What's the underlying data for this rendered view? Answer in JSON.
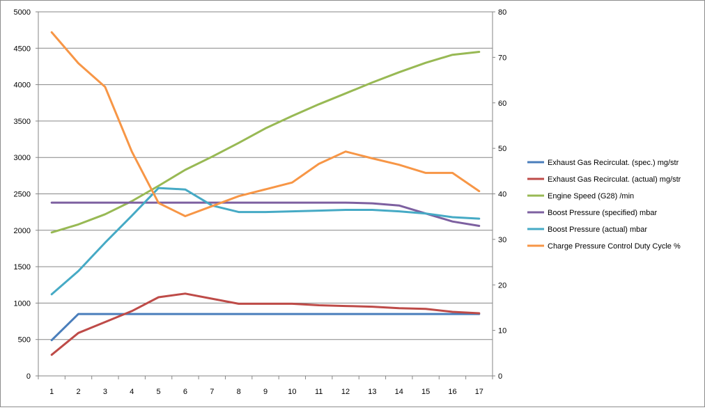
{
  "chart_data": {
    "type": "line",
    "title": "",
    "xlabel": "",
    "ylabel": "",
    "y2label": "",
    "categories": [
      "1",
      "2",
      "3",
      "4",
      "5",
      "6",
      "7",
      "8",
      "9",
      "10",
      "11",
      "12",
      "13",
      "14",
      "15",
      "16",
      "17"
    ],
    "ylim": [
      0,
      5000
    ],
    "y_ticks": [
      "0",
      "500",
      "1000",
      "1500",
      "2000",
      "2500",
      "3000",
      "3500",
      "4000",
      "4500",
      "5000"
    ],
    "y2lim": [
      0,
      80
    ],
    "y2_ticks": [
      "0",
      "10",
      "20",
      "30",
      "40",
      "50",
      "60",
      "70",
      "80"
    ],
    "grid": "horizontal",
    "legend_position": "right",
    "series": [
      {
        "name": "Exhaust Gas Recirculat. (spec.)  mg/str",
        "color": "#4a7ebb",
        "axis": "left",
        "values": [
          490,
          850,
          850,
          850,
          850,
          850,
          850,
          850,
          850,
          850,
          850,
          850,
          850,
          850,
          850,
          850,
          850
        ]
      },
      {
        "name": "Exhaust Gas Recirculat. (actual)  mg/str",
        "color": "#be4b48",
        "axis": "left",
        "values": [
          290,
          590,
          740,
          890,
          1080,
          1130,
          1060,
          990,
          990,
          990,
          970,
          960,
          950,
          930,
          920,
          880,
          860
        ]
      },
      {
        "name": "Engine Speed (G28)  /min",
        "color": "#98b954",
        "axis": "left",
        "values": [
          1970,
          2080,
          2220,
          2400,
          2610,
          2830,
          3010,
          3200,
          3400,
          3570,
          3730,
          3880,
          4030,
          4170,
          4300,
          4410,
          4450
        ]
      },
      {
        "name": "Boost Pressure (specified)  mbar",
        "color": "#7d60a0",
        "axis": "left",
        "values": [
          2380,
          2380,
          2380,
          2380,
          2380,
          2380,
          2380,
          2380,
          2380,
          2380,
          2380,
          2380,
          2370,
          2340,
          2230,
          2120,
          2060
        ]
      },
      {
        "name": "Boost Pressure (actual)  mbar",
        "color": "#46aac5",
        "axis": "left",
        "values": [
          1120,
          1440,
          1830,
          2200,
          2580,
          2560,
          2340,
          2250,
          2250,
          2260,
          2270,
          2280,
          2280,
          2260,
          2230,
          2180,
          2160
        ]
      },
      {
        "name": "Charge Pressure Control Duty Cycle  %",
        "color": "#f79646",
        "axis": "right",
        "values": [
          75.5,
          68.7,
          63.5,
          49.3,
          38.0,
          35.1,
          37.3,
          39.5,
          41.0,
          42.5,
          46.6,
          49.3,
          47.8,
          46.4,
          44.6,
          44.6,
          40.6
        ]
      }
    ]
  }
}
